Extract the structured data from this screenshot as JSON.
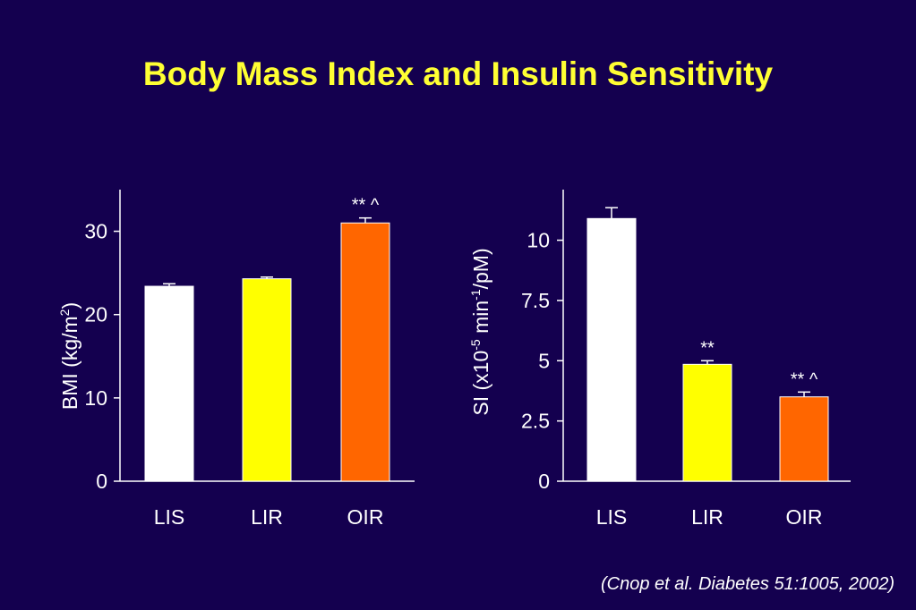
{
  "slide": {
    "title": "Body Mass Index and Insulin Sensitivity",
    "citation": "(Cnop et al. Diabetes 51:1005, 2002)"
  },
  "colors": {
    "background": "#14004f",
    "title": "#ffff33",
    "axis": "#ffffff",
    "text": "#ffffff"
  },
  "chart_data": [
    {
      "type": "bar",
      "ylabel": "BMI (kg/m",
      "ylabel_sup": "2",
      "ylabel_end": ")",
      "categories": [
        "LIS",
        "LIR",
        "OIR"
      ],
      "values": [
        23.4,
        24.3,
        31.0
      ],
      "errors": [
        0.3,
        0.2,
        0.6
      ],
      "annotations": [
        "",
        "",
        "** ^"
      ],
      "colors": [
        "#ffffff",
        "#ffff00",
        "#ff6600"
      ],
      "ylim": [
        0,
        35
      ],
      "yticks": [
        0,
        10,
        20,
        30
      ],
      "ytick_labels": [
        "0",
        "10",
        "20",
        "30"
      ],
      "grid": false,
      "legend": false
    },
    {
      "type": "bar",
      "ylabel": "SI (x10",
      "ylabel_sup1": "-5",
      "ylabel_mid": " min",
      "ylabel_sup2": "-1",
      "ylabel_end": "/pM)",
      "categories": [
        "LIS",
        "LIR",
        "OIR"
      ],
      "values": [
        10.9,
        4.85,
        3.5
      ],
      "errors": [
        0.45,
        0.15,
        0.2
      ],
      "annotations": [
        "",
        "**",
        "** ^"
      ],
      "colors": [
        "#ffffff",
        "#ffff00",
        "#ff6600"
      ],
      "ylim": [
        0,
        12.1
      ],
      "yticks": [
        0,
        2.5,
        5,
        7.5,
        10
      ],
      "ytick_labels": [
        "0",
        "2.5",
        "5",
        "7.5",
        "10"
      ],
      "grid": false,
      "legend": false
    }
  ]
}
